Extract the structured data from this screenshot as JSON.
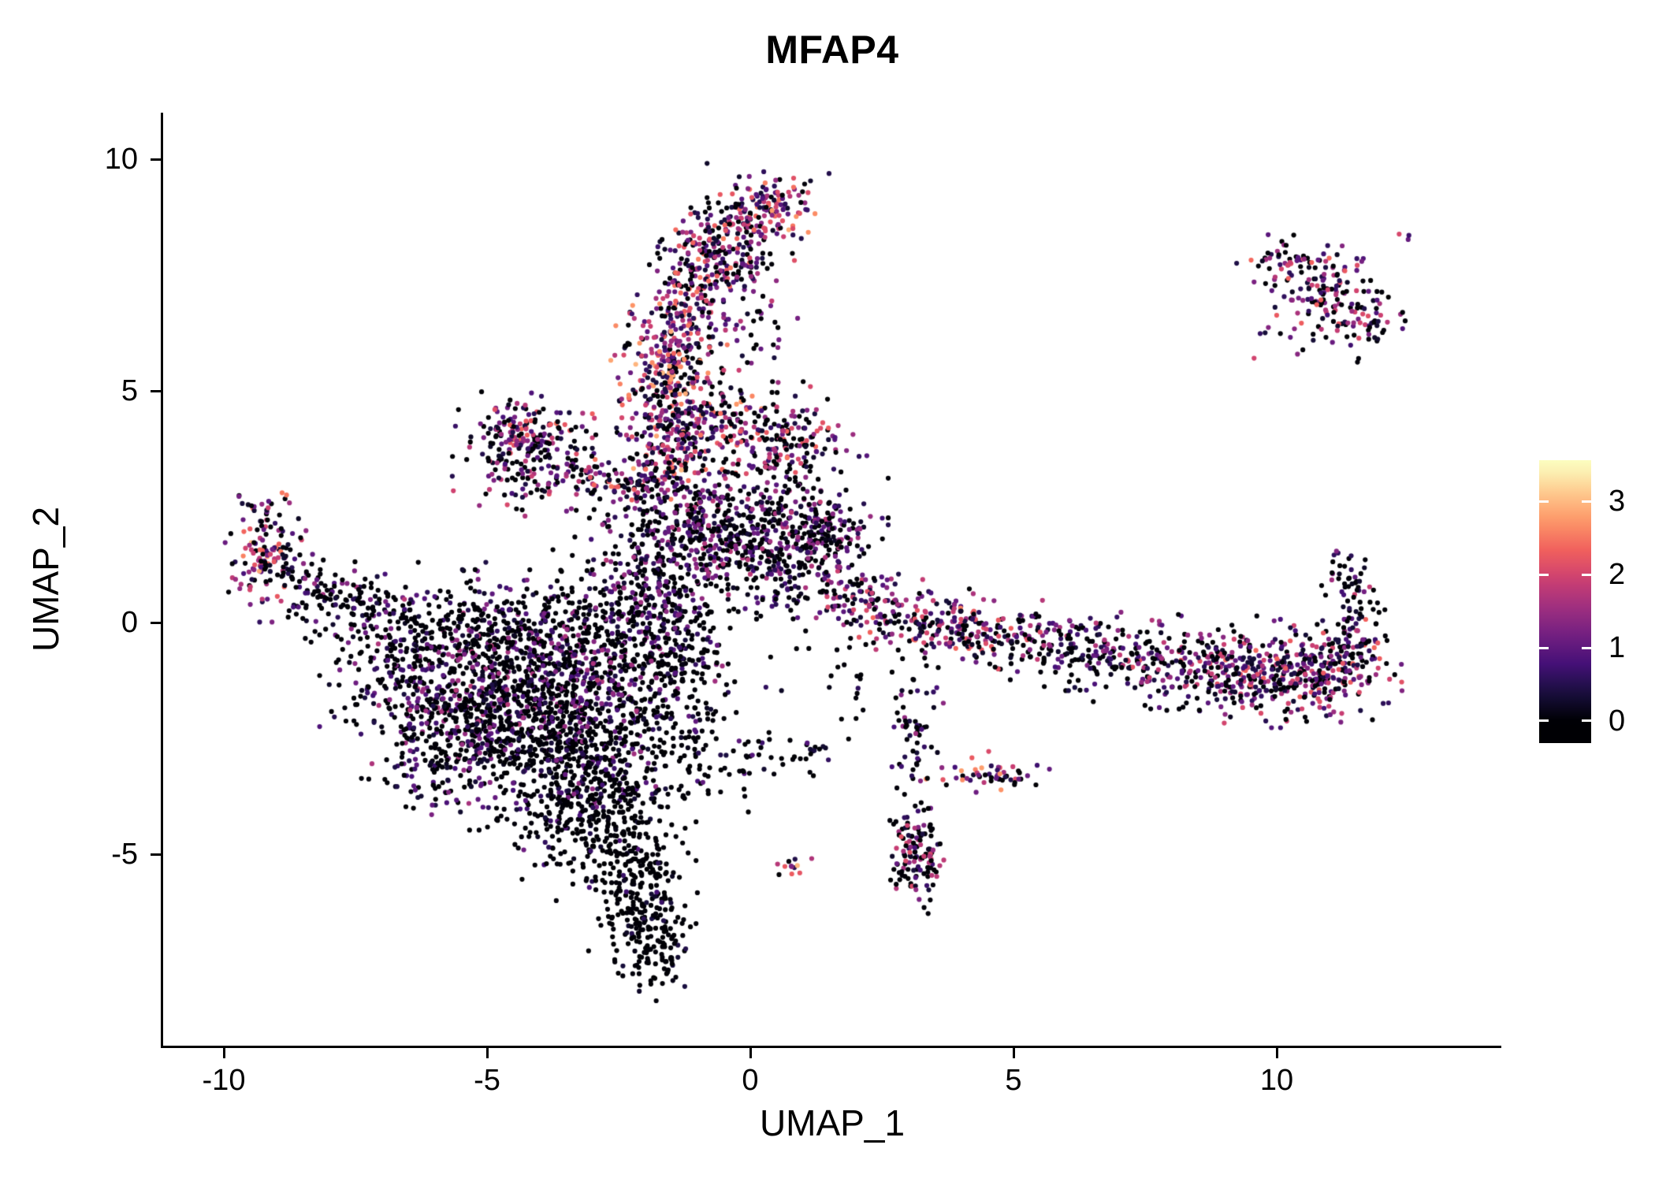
{
  "title": "MFAP4",
  "chart_data": {
    "type": "scatter",
    "title": "MFAP4",
    "xlabel": "UMAP_1",
    "ylabel": "UMAP_2",
    "xlim": [
      -11.1,
      14.3
    ],
    "ylim": [
      -9.2,
      11.0
    ],
    "x_ticks": [
      -10,
      -5,
      0,
      5,
      10
    ],
    "y_ticks": [
      -5,
      0,
      5,
      10
    ],
    "grid": false,
    "background": "#ffffff",
    "point_color_meaning": "MFAP4 expression level per cell (UMAP embedding, feature plot)",
    "legend": {
      "type": "colorbar",
      "position": "right",
      "label_values": [
        0,
        1,
        2,
        3
      ],
      "domain": [
        0,
        3.5
      ],
      "colormap": "magma",
      "colors": [
        "#000004",
        "#180F3E",
        "#451077",
        "#721F81",
        "#9F2F7F",
        "#CD4071",
        "#F1605D",
        "#FD9567",
        "#FEC98D",
        "#FCFDBF"
      ]
    },
    "cluster_columns": [
      "center_x",
      "center_y",
      "sd_x",
      "sd_y",
      "rotation_deg",
      "n_points",
      "fraction_zero",
      "max_expression"
    ],
    "clusters": [
      [
        -4.8,
        -1.2,
        1.3,
        0.9,
        0,
        700,
        0.55,
        1.8
      ],
      [
        -3.5,
        -2.4,
        1.0,
        1.0,
        0,
        600,
        0.7,
        1.5
      ],
      [
        -5.6,
        -2.4,
        0.8,
        0.8,
        0,
        300,
        0.6,
        1.8
      ],
      [
        -3.0,
        -4.0,
        0.7,
        0.8,
        0,
        350,
        0.85,
        1.0
      ],
      [
        -2.2,
        -5.5,
        0.45,
        0.8,
        0,
        200,
        0.92,
        0.8
      ],
      [
        -1.8,
        -6.9,
        0.35,
        0.55,
        0,
        130,
        0.9,
        0.7
      ],
      [
        -4.6,
        0.0,
        1.5,
        0.5,
        0,
        260,
        0.6,
        1.5
      ],
      [
        -2.5,
        -0.4,
        0.8,
        1.0,
        0,
        300,
        0.55,
        1.6
      ],
      [
        -6.6,
        -1.0,
        0.5,
        0.6,
        0,
        120,
        0.65,
        1.5
      ],
      [
        -7.3,
        0.3,
        0.6,
        0.3,
        -15,
        70,
        0.6,
        1.3
      ],
      [
        -8.3,
        0.8,
        0.6,
        0.35,
        -25,
        90,
        0.5,
        1.8
      ],
      [
        -9.2,
        1.7,
        0.35,
        0.65,
        0,
        110,
        0.35,
        2.6
      ],
      [
        -9.35,
        1.3,
        0.2,
        0.25,
        0,
        25,
        0.15,
        3.2
      ],
      [
        -4.3,
        4.2,
        0.5,
        0.3,
        0,
        120,
        0.3,
        2.5
      ],
      [
        -4.1,
        3.4,
        0.6,
        0.5,
        0,
        150,
        0.4,
        2.2
      ],
      [
        -3.0,
        3.2,
        0.7,
        0.25,
        -10,
        60,
        0.35,
        2.5
      ],
      [
        -2.3,
        3.05,
        0.35,
        0.15,
        0,
        22,
        0.3,
        2.8
      ],
      [
        -1.3,
        2.2,
        0.8,
        0.6,
        0,
        250,
        0.5,
        1.8
      ],
      [
        -1.5,
        3.6,
        0.5,
        0.7,
        0,
        180,
        0.35,
        2.5
      ],
      [
        -1.6,
        5.0,
        0.45,
        0.8,
        0,
        220,
        0.2,
        3.0
      ],
      [
        -1.3,
        6.3,
        0.4,
        0.6,
        0,
        150,
        0.25,
        2.8
      ],
      [
        -0.9,
        7.5,
        0.45,
        0.6,
        0,
        160,
        0.3,
        2.6
      ],
      [
        -0.4,
        8.3,
        0.5,
        0.4,
        0,
        120,
        0.3,
        2.6
      ],
      [
        0.35,
        9.0,
        0.45,
        0.35,
        0,
        130,
        0.2,
        3.0
      ],
      [
        0.1,
        6.8,
        0.5,
        0.8,
        0,
        45,
        0.5,
        2.0
      ],
      [
        -0.6,
        4.4,
        0.5,
        0.5,
        0,
        120,
        0.3,
        2.8
      ],
      [
        0.6,
        3.9,
        0.6,
        0.5,
        0,
        180,
        0.4,
        2.4
      ],
      [
        0.8,
        2.1,
        0.7,
        0.6,
        0,
        250,
        0.5,
        1.8
      ],
      [
        -0.2,
        1.5,
        0.8,
        0.5,
        0,
        200,
        0.5,
        1.8
      ],
      [
        1.4,
        1.8,
        0.4,
        0.5,
        0,
        80,
        0.55,
        1.6
      ],
      [
        -1.6,
        0.4,
        0.5,
        0.8,
        0,
        200,
        0.55,
        1.6
      ],
      [
        -1.2,
        -1.3,
        0.5,
        0.9,
        0,
        140,
        0.75,
        1.2
      ],
      [
        -0.6,
        -3.0,
        0.8,
        0.5,
        0,
        55,
        0.85,
        0.8
      ],
      [
        0.7,
        -2.75,
        0.5,
        0.2,
        0,
        28,
        0.75,
        1.0
      ],
      [
        2.2,
        0.45,
        0.5,
        0.4,
        0,
        80,
        0.4,
        2.2
      ],
      [
        3.3,
        0.0,
        0.7,
        0.35,
        -10,
        150,
        0.25,
        2.6
      ],
      [
        4.5,
        -0.3,
        0.6,
        0.3,
        -8,
        100,
        0.3,
        2.4
      ],
      [
        5.8,
        -0.55,
        0.7,
        0.35,
        0,
        90,
        0.45,
        2.0
      ],
      [
        7.2,
        -0.75,
        0.8,
        0.35,
        0,
        90,
        0.5,
        2.0
      ],
      [
        8.8,
        -1.0,
        0.9,
        0.45,
        0,
        220,
        0.35,
        2.2
      ],
      [
        10.3,
        -1.1,
        0.8,
        0.45,
        0,
        260,
        0.3,
        2.4
      ],
      [
        11.3,
        -0.85,
        0.4,
        0.5,
        0,
        120,
        0.35,
        2.4
      ],
      [
        11.45,
        0.2,
        0.25,
        0.5,
        0,
        55,
        0.5,
        2.0
      ],
      [
        11.25,
        1.0,
        0.3,
        0.25,
        0,
        20,
        0.6,
        1.6
      ],
      [
        6.5,
        -0.3,
        1.0,
        0.3,
        0,
        45,
        0.55,
        1.8
      ],
      [
        11.0,
        7.0,
        0.55,
        0.55,
        0,
        130,
        0.35,
        2.4
      ],
      [
        10.2,
        7.8,
        0.45,
        0.25,
        0,
        50,
        0.3,
        2.4
      ],
      [
        11.8,
        6.4,
        0.3,
        0.3,
        0,
        40,
        0.4,
        2.2
      ],
      [
        12.4,
        8.3,
        0.12,
        0.12,
        0,
        3,
        0.1,
        2.4
      ],
      [
        3.15,
        -5.0,
        0.25,
        0.55,
        0,
        130,
        0.45,
        2.2
      ],
      [
        3.1,
        -2.4,
        0.22,
        0.6,
        0,
        55,
        0.6,
        1.6
      ],
      [
        4.5,
        -3.25,
        0.55,
        0.18,
        0,
        55,
        0.25,
        2.8
      ],
      [
        0.75,
        -5.3,
        0.2,
        0.15,
        0,
        12,
        0.15,
        3.0
      ],
      [
        1.8,
        -1.0,
        0.8,
        0.7,
        0,
        25,
        0.7,
        1.2
      ],
      [
        0.8,
        0.6,
        0.6,
        0.4,
        0,
        55,
        0.5,
        1.7
      ]
    ]
  }
}
